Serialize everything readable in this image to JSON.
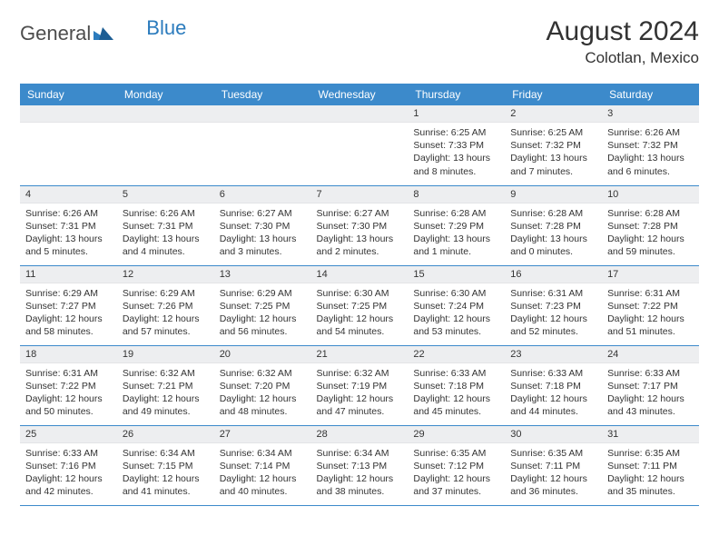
{
  "brand": {
    "part1": "General",
    "part2": "Blue"
  },
  "header": {
    "month_title": "August 2024",
    "location": "Colotlan, Mexico"
  },
  "colors": {
    "header_bg": "#3c8acb",
    "header_text": "#ffffff",
    "numbar_bg": "#edeef0",
    "divider": "#3c8acb",
    "logo_dark": "#4d4d4d",
    "logo_blue": "#2b7bbd"
  },
  "day_labels": [
    "Sunday",
    "Monday",
    "Tuesday",
    "Wednesday",
    "Thursday",
    "Friday",
    "Saturday"
  ],
  "weeks": [
    [
      null,
      null,
      null,
      null,
      {
        "n": "1",
        "sr": "6:25 AM",
        "ss": "7:33 PM",
        "dl": "13 hours and 8 minutes."
      },
      {
        "n": "2",
        "sr": "6:25 AM",
        "ss": "7:32 PM",
        "dl": "13 hours and 7 minutes."
      },
      {
        "n": "3",
        "sr": "6:26 AM",
        "ss": "7:32 PM",
        "dl": "13 hours and 6 minutes."
      }
    ],
    [
      {
        "n": "4",
        "sr": "6:26 AM",
        "ss": "7:31 PM",
        "dl": "13 hours and 5 minutes."
      },
      {
        "n": "5",
        "sr": "6:26 AM",
        "ss": "7:31 PM",
        "dl": "13 hours and 4 minutes."
      },
      {
        "n": "6",
        "sr": "6:27 AM",
        "ss": "7:30 PM",
        "dl": "13 hours and 3 minutes."
      },
      {
        "n": "7",
        "sr": "6:27 AM",
        "ss": "7:30 PM",
        "dl": "13 hours and 2 minutes."
      },
      {
        "n": "8",
        "sr": "6:28 AM",
        "ss": "7:29 PM",
        "dl": "13 hours and 1 minute."
      },
      {
        "n": "9",
        "sr": "6:28 AM",
        "ss": "7:28 PM",
        "dl": "13 hours and 0 minutes."
      },
      {
        "n": "10",
        "sr": "6:28 AM",
        "ss": "7:28 PM",
        "dl": "12 hours and 59 minutes."
      }
    ],
    [
      {
        "n": "11",
        "sr": "6:29 AM",
        "ss": "7:27 PM",
        "dl": "12 hours and 58 minutes."
      },
      {
        "n": "12",
        "sr": "6:29 AM",
        "ss": "7:26 PM",
        "dl": "12 hours and 57 minutes."
      },
      {
        "n": "13",
        "sr": "6:29 AM",
        "ss": "7:25 PM",
        "dl": "12 hours and 56 minutes."
      },
      {
        "n": "14",
        "sr": "6:30 AM",
        "ss": "7:25 PM",
        "dl": "12 hours and 54 minutes."
      },
      {
        "n": "15",
        "sr": "6:30 AM",
        "ss": "7:24 PM",
        "dl": "12 hours and 53 minutes."
      },
      {
        "n": "16",
        "sr": "6:31 AM",
        "ss": "7:23 PM",
        "dl": "12 hours and 52 minutes."
      },
      {
        "n": "17",
        "sr": "6:31 AM",
        "ss": "7:22 PM",
        "dl": "12 hours and 51 minutes."
      }
    ],
    [
      {
        "n": "18",
        "sr": "6:31 AM",
        "ss": "7:22 PM",
        "dl": "12 hours and 50 minutes."
      },
      {
        "n": "19",
        "sr": "6:32 AM",
        "ss": "7:21 PM",
        "dl": "12 hours and 49 minutes."
      },
      {
        "n": "20",
        "sr": "6:32 AM",
        "ss": "7:20 PM",
        "dl": "12 hours and 48 minutes."
      },
      {
        "n": "21",
        "sr": "6:32 AM",
        "ss": "7:19 PM",
        "dl": "12 hours and 47 minutes."
      },
      {
        "n": "22",
        "sr": "6:33 AM",
        "ss": "7:18 PM",
        "dl": "12 hours and 45 minutes."
      },
      {
        "n": "23",
        "sr": "6:33 AM",
        "ss": "7:18 PM",
        "dl": "12 hours and 44 minutes."
      },
      {
        "n": "24",
        "sr": "6:33 AM",
        "ss": "7:17 PM",
        "dl": "12 hours and 43 minutes."
      }
    ],
    [
      {
        "n": "25",
        "sr": "6:33 AM",
        "ss": "7:16 PM",
        "dl": "12 hours and 42 minutes."
      },
      {
        "n": "26",
        "sr": "6:34 AM",
        "ss": "7:15 PM",
        "dl": "12 hours and 41 minutes."
      },
      {
        "n": "27",
        "sr": "6:34 AM",
        "ss": "7:14 PM",
        "dl": "12 hours and 40 minutes."
      },
      {
        "n": "28",
        "sr": "6:34 AM",
        "ss": "7:13 PM",
        "dl": "12 hours and 38 minutes."
      },
      {
        "n": "29",
        "sr": "6:35 AM",
        "ss": "7:12 PM",
        "dl": "12 hours and 37 minutes."
      },
      {
        "n": "30",
        "sr": "6:35 AM",
        "ss": "7:11 PM",
        "dl": "12 hours and 36 minutes."
      },
      {
        "n": "31",
        "sr": "6:35 AM",
        "ss": "7:11 PM",
        "dl": "12 hours and 35 minutes."
      }
    ]
  ],
  "labels": {
    "sunrise": "Sunrise: ",
    "sunset": "Sunset: ",
    "daylight": "Daylight: "
  }
}
